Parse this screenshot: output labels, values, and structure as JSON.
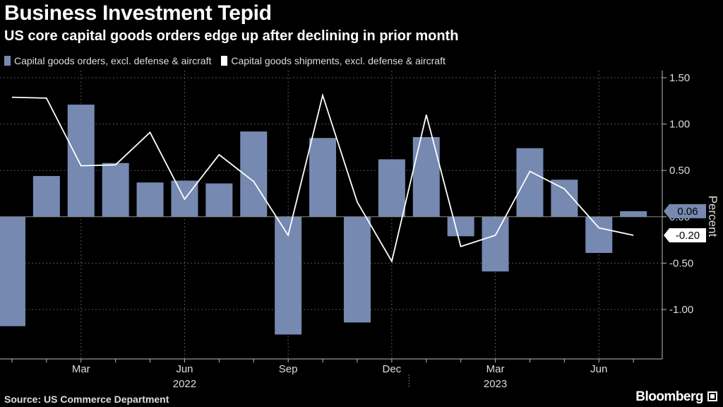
{
  "title": "Business Investment Tepid",
  "subtitle": "US core capital goods orders edge up after declining in prior month",
  "legend": [
    {
      "label": "Capital goods orders, excl. defense & aircraft",
      "color": "#7589b1"
    },
    {
      "label": "Capital goods shipments, excl. defense & aircraft",
      "color": "#ffffff"
    }
  ],
  "source": "Source: US Commerce Department",
  "brand": "Bloomberg",
  "chart_data": {
    "type": "bar",
    "ylabel": "Percent",
    "ylim": [
      -1.5,
      1.5
    ],
    "yticks": [
      {
        "value": 1.5,
        "label": "1.50"
      },
      {
        "value": 1.0,
        "label": "1.00"
      },
      {
        "value": 0.5,
        "label": "0.50"
      },
      {
        "value": 0.0,
        "label": "0.00"
      },
      {
        "value": -0.5,
        "label": "-0.50"
      },
      {
        "value": -1.0,
        "label": "-1.00"
      }
    ],
    "categories": [
      "Jan 2022",
      "Feb 2022",
      "Mar 2022",
      "Apr 2022",
      "May 2022",
      "Jun 2022",
      "Jul 2022",
      "Aug 2022",
      "Sep 2022",
      "Oct 2022",
      "Nov 2022",
      "Dec 2022",
      "Jan 2023",
      "Feb 2023",
      "Mar 2023",
      "Apr 2023",
      "May 2023",
      "Jun 2023",
      "Jul 2023"
    ],
    "month_ticks": [
      {
        "index": 2,
        "label": "Mar"
      },
      {
        "index": 5,
        "label": "Jun"
      },
      {
        "index": 8,
        "label": "Sep"
      },
      {
        "index": 11,
        "label": "Dec"
      },
      {
        "index": 14,
        "label": "Mar"
      },
      {
        "index": 17,
        "label": "Jun"
      }
    ],
    "year_labels": [
      {
        "label": "2022",
        "center_index": 5
      },
      {
        "label": "2023",
        "center_index": 14
      }
    ],
    "series": [
      {
        "name": "Capital goods orders, excl. defense & aircraft",
        "kind": "bar",
        "color": "#7589b1",
        "values": [
          -1.18,
          0.44,
          1.21,
          0.58,
          0.37,
          0.39,
          0.36,
          0.92,
          -1.27,
          0.85,
          -1.14,
          0.62,
          0.86,
          -0.21,
          -0.59,
          0.74,
          0.4,
          -0.39,
          0.06
        ]
      },
      {
        "name": "Capital goods shipments, excl. defense & aircraft",
        "kind": "line",
        "color": "#ffffff",
        "values": [
          1.29,
          1.28,
          0.55,
          0.56,
          0.91,
          0.19,
          0.67,
          0.38,
          -0.2,
          1.31,
          0.16,
          -0.48,
          1.1,
          -0.32,
          -0.2,
          0.49,
          0.3,
          -0.12,
          -0.2
        ]
      }
    ],
    "callouts": [
      {
        "series": 0,
        "label": "0.06"
      },
      {
        "series": 1,
        "label": "-0.20"
      }
    ]
  }
}
